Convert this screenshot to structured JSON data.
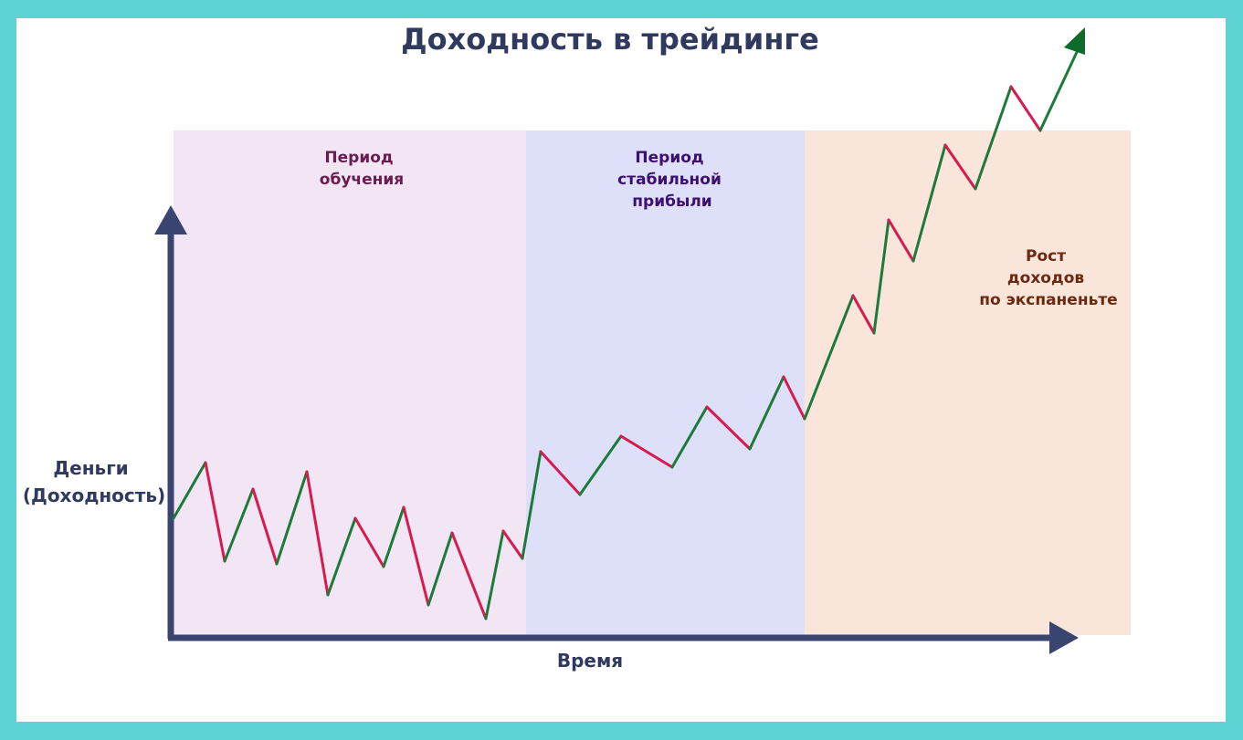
{
  "title": "Доходность в трейдинге",
  "y_axis_label": [
    "Деньги",
    "(Доходность)"
  ],
  "x_axis_label": "Время",
  "colors": {
    "frame": "#5dd3d3",
    "axis": "#3a4470",
    "up_segment": "#1d7a3a",
    "down_segment": "#d81b4f",
    "arrow_head": "#0e6b2c"
  },
  "zones": [
    {
      "lines": [
        "Период",
        "обучения"
      ],
      "fill": "#f2e6f5",
      "label_color": "#6a1b4f"
    },
    {
      "lines": [
        "Период",
        "стабильной",
        "прибыли"
      ],
      "fill": "#dde0f8",
      "label_color": "#3d0f6e"
    },
    {
      "lines": [
        "Рост",
        "доходов",
        "по экспаненьте"
      ],
      "fill": "#f9e5da",
      "label_color": "#6b2a10"
    }
  ]
}
